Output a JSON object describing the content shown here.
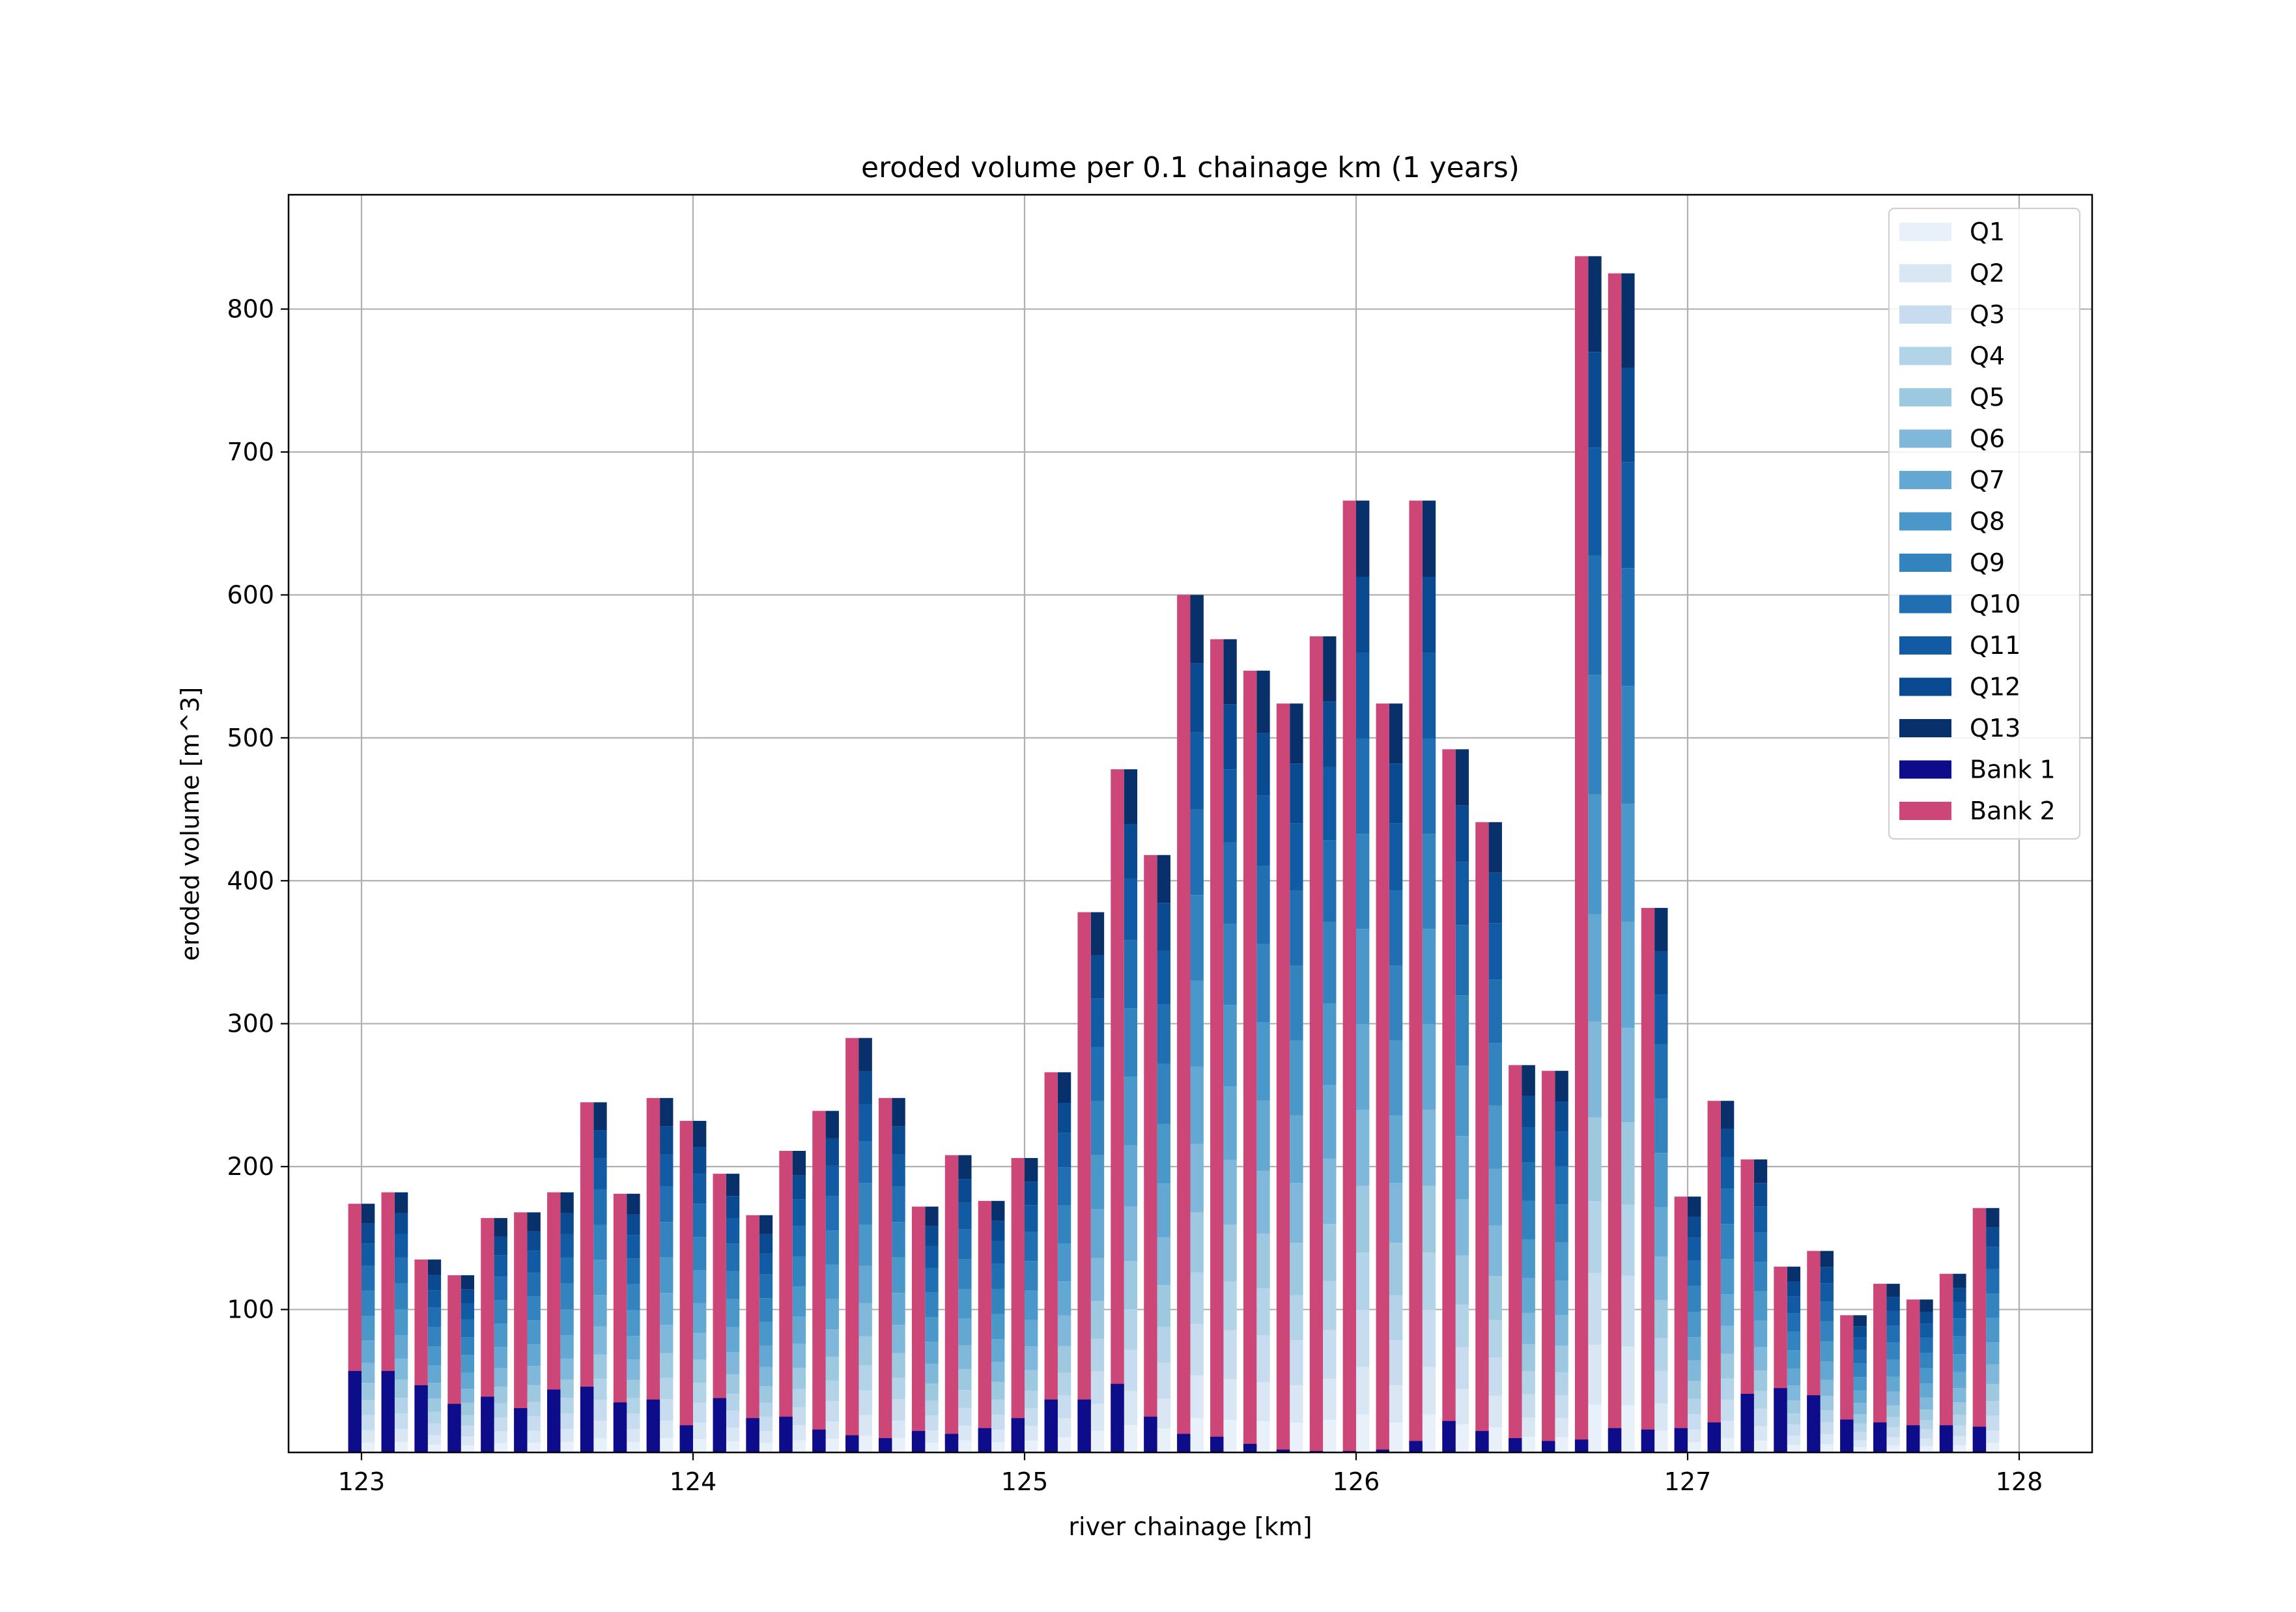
{
  "chart_data": {
    "type": "bar",
    "title": "eroded volume per 0.1 chainage km (1 years)",
    "xlabel": "river chainage [km]",
    "ylabel": "eroded volume [m^3]",
    "xlim": [
      122.78,
      128.22
    ],
    "ylim": [
      0,
      880
    ],
    "xticks": [
      123,
      124,
      125,
      126,
      127,
      128
    ],
    "yticks": [
      100,
      200,
      300,
      400,
      500,
      600,
      700,
      800
    ],
    "grid": true,
    "legend_position": "top-right",
    "bar_width_km": 0.04,
    "bank_totals": {
      "Bank 1": [
        57,
        57,
        47,
        34,
        39,
        31,
        44,
        46,
        35,
        37,
        19,
        38,
        24,
        25,
        16,
        12,
        10,
        15,
        13,
        17,
        24,
        37,
        37,
        48,
        25,
        13,
        11,
        6,
        2,
        1,
        1,
        2,
        8,
        22,
        15,
        10,
        8,
        9,
        17,
        16,
        17,
        21,
        41,
        45,
        40,
        23,
        21,
        19,
        19,
        18
      ],
      "Bank 2": [
        174,
        182,
        135,
        124,
        164,
        168,
        182,
        245,
        181,
        248,
        232,
        195,
        166,
        211,
        239,
        290,
        248,
        172,
        208,
        176,
        206,
        266,
        378,
        478,
        418,
        600,
        569,
        547,
        524,
        571,
        666,
        524,
        666,
        492,
        441,
        271,
        267,
        837,
        825,
        381,
        179,
        246,
        205,
        130,
        141,
        96,
        118,
        107,
        125,
        171
      ]
    },
    "q_weights": [
      0.04,
      0.05,
      0.06,
      0.06,
      0.07,
      0.08,
      0.09,
      0.1,
      0.1,
      0.1,
      0.09,
      0.08,
      0.08
    ],
    "series": [
      {
        "name": "Q1",
        "color": "#e8f1fa"
      },
      {
        "name": "Q2",
        "color": "#d9e7f5"
      },
      {
        "name": "Q3",
        "color": "#c8dcf0"
      },
      {
        "name": "Q4",
        "color": "#b3d3e8"
      },
      {
        "name": "Q5",
        "color": "#9dc9e0"
      },
      {
        "name": "Q6",
        "color": "#7fb8da"
      },
      {
        "name": "Q7",
        "color": "#62a8d3"
      },
      {
        "name": "Q8",
        "color": "#4a98c9"
      },
      {
        "name": "Q9",
        "color": "#3383be"
      },
      {
        "name": "Q10",
        "color": "#206fb2"
      },
      {
        "name": "Q11",
        "color": "#105ba4"
      },
      {
        "name": "Q12",
        "color": "#0a4a90"
      },
      {
        "name": "Q13",
        "color": "#08306b"
      },
      {
        "name": "Bank 1",
        "color": "#0d0d8c"
      },
      {
        "name": "Bank 2",
        "color": "#cc4778"
      }
    ]
  }
}
